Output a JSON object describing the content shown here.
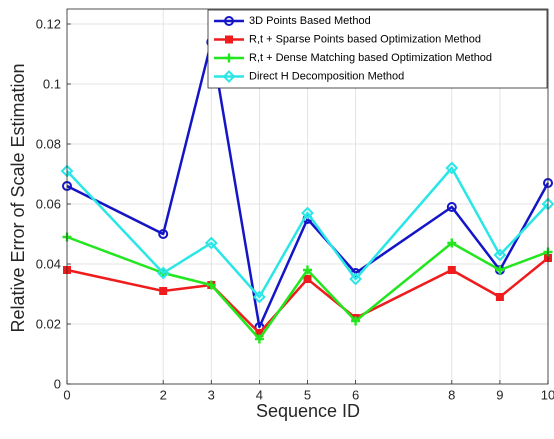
{
  "chart_data": {
    "type": "line",
    "xlabel": "Sequence ID",
    "ylabel": "Relative Error of Scale Estimation",
    "x": [
      0,
      2,
      3,
      4,
      5,
      6,
      8,
      9,
      10
    ],
    "xticks": [
      "0",
      "2",
      "3",
      "4",
      "5",
      "6",
      "8",
      "9",
      "10"
    ],
    "yticks": [
      "0",
      "0.02",
      "0.04",
      "0.06",
      "0.08",
      "0.1",
      "0.12"
    ],
    "ylim": [
      0,
      0.125
    ],
    "grid": true,
    "legend_position": "top-right",
    "series": [
      {
        "name": "3D Points Based Method",
        "color": "#1515c8",
        "marker": "circle",
        "values": [
          0.066,
          0.05,
          0.114,
          0.019,
          0.055,
          0.037,
          0.059,
          0.038,
          0.067
        ]
      },
      {
        "name": "R,t + Sparse Points based Optimization Method",
        "color": "#ee1c1c",
        "marker": "square",
        "values": [
          0.038,
          0.031,
          0.033,
          0.017,
          0.035,
          0.022,
          0.038,
          0.029,
          0.042
        ]
      },
      {
        "name": "R,t + Dense Matching based Optimization Method",
        "color": "#22e61e",
        "marker": "cross",
        "values": [
          0.049,
          0.037,
          0.033,
          0.015,
          0.038,
          0.021,
          0.047,
          0.038,
          0.044
        ]
      },
      {
        "name": "Direct H Decomposition Method",
        "color": "#2be6e6",
        "marker": "diamond",
        "values": [
          0.071,
          0.037,
          0.047,
          0.029,
          0.057,
          0.035,
          0.072,
          0.043,
          0.06
        ]
      }
    ]
  }
}
